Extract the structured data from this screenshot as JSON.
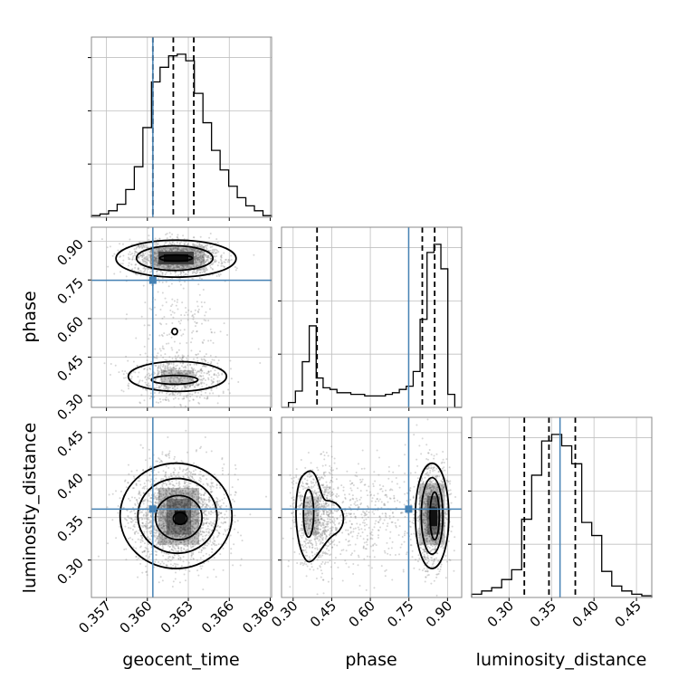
{
  "chart_data": {
    "type": "corner",
    "parameters": [
      "geocent_time",
      "phase",
      "luminosity_distance"
    ],
    "truths": {
      "geocent_time": 0.3604,
      "phase": 0.749,
      "luminosity_distance": 0.36
    },
    "truth_color": "#4682b4",
    "quantiles": {
      "geocent_time": [
        0.3604,
        0.3619,
        0.3634
      ],
      "phase": [
        0.393,
        0.802,
        0.85
      ],
      "luminosity_distance": [
        0.318,
        0.347,
        0.378
      ]
    },
    "axis_ranges": {
      "geocent_time": [
        0.3559,
        0.3691
      ],
      "phase": [
        0.255,
        0.955
      ],
      "luminosity_distance": [
        0.256,
        0.468
      ]
    },
    "ticks": {
      "geocent_time": {
        "values": [
          0.357,
          0.36,
          0.363,
          0.366,
          0.369
        ],
        "labels": [
          "0.357",
          "0.360",
          "0.363",
          "0.366",
          "0.369"
        ]
      },
      "phase": {
        "values": [
          0.3,
          0.45,
          0.6,
          0.75,
          0.9
        ],
        "labels": [
          "0.30",
          "0.45",
          "0.60",
          "0.75",
          "0.90"
        ]
      },
      "luminosity_distance": {
        "values": [
          0.3,
          0.35,
          0.4,
          0.45
        ],
        "labels": [
          "0.30",
          "0.35",
          "0.40",
          "0.45"
        ]
      }
    },
    "axis_labels": {
      "bottom": [
        "geocent_time",
        "phase",
        "luminosity_distance"
      ],
      "left": [
        "phase",
        "luminosity_distance"
      ]
    },
    "histograms": {
      "geocent_time": [
        0.01,
        0.02,
        0.04,
        0.08,
        0.17,
        0.31,
        0.55,
        0.83,
        0.92,
        0.99,
        1.0,
        0.96,
        0.76,
        0.58,
        0.41,
        0.29,
        0.19,
        0.12,
        0.07,
        0.04,
        0.01
      ],
      "phase": [
        0.0,
        0.03,
        0.1,
        0.28,
        0.5,
        0.18,
        0.12,
        0.11,
        0.09,
        0.09,
        0.08,
        0.08,
        0.07,
        0.07,
        0.07,
        0.08,
        0.09,
        0.11,
        0.13,
        0.22,
        0.54,
        0.95,
        1.0,
        0.85,
        0.08,
        0.0
      ],
      "luminosity_distance": [
        0.02,
        0.04,
        0.06,
        0.11,
        0.17,
        0.48,
        0.75,
        0.96,
        1.0,
        0.93,
        0.82,
        0.46,
        0.38,
        0.16,
        0.07,
        0.04,
        0.02,
        0.01
      ]
    },
    "grid": true
  }
}
